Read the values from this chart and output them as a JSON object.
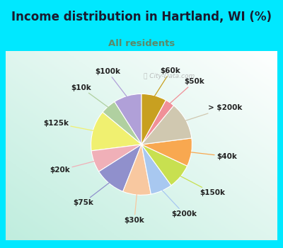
{
  "title": "Income distribution in Hartland, WI (%)",
  "subtitle": "All residents",
  "bg_cyan": "#00e8ff",
  "bg_chart": "#d8f0e8",
  "labels": [
    "$100k",
    "$10k",
    "$125k",
    "$20k",
    "$75k",
    "$30k",
    "$200k",
    "$150k",
    "$40k",
    "> $200k",
    "$50k",
    "$60k"
  ],
  "sizes": [
    9,
    5,
    13,
    7,
    10,
    9,
    7,
    8,
    9,
    12,
    3,
    8
  ],
  "colors": [
    "#b0a0d8",
    "#b0d0a0",
    "#f0f070",
    "#f0b0b8",
    "#9090cc",
    "#f8c8a0",
    "#a8c8f0",
    "#c8e050",
    "#f8a850",
    "#d0c8b0",
    "#f09098",
    "#c8a020"
  ],
  "startangle": 90,
  "title_fontsize": 12,
  "subtitle_fontsize": 9.5,
  "label_fontsize": 7.5,
  "subtitle_color": "#5a8a6a"
}
